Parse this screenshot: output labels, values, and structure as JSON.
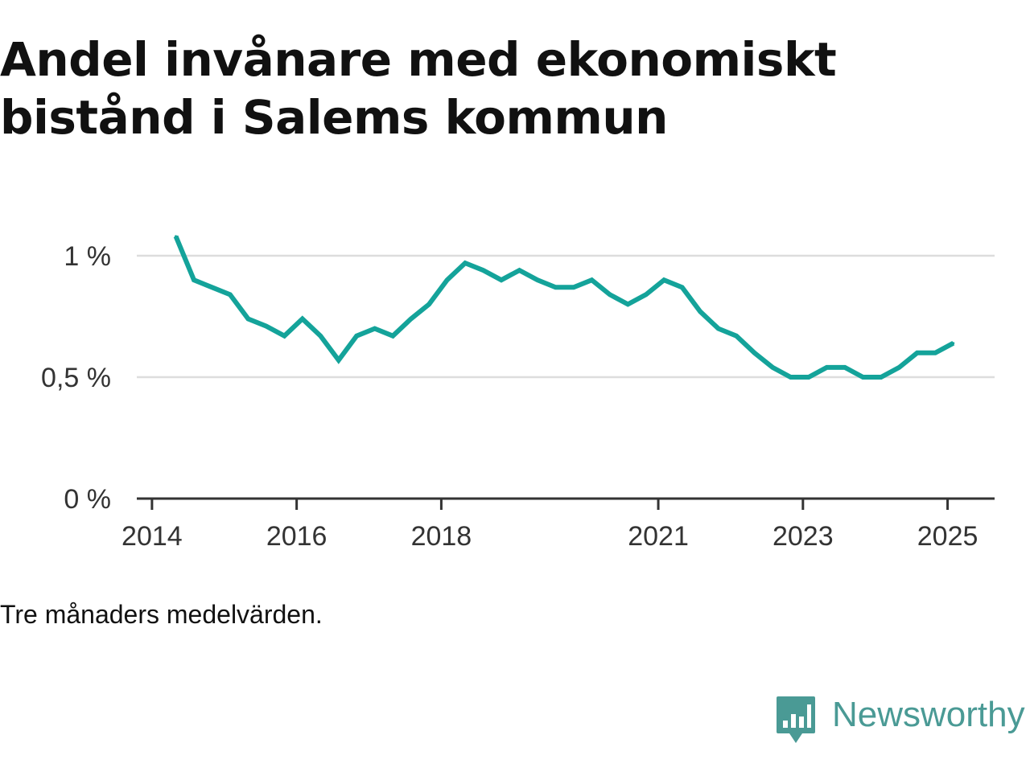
{
  "title": "Andel invånare med ekonomiskt bistånd i Salems kommun",
  "note": "Tre månaders medelvärden.",
  "brand": {
    "name": "Newsworthy",
    "logo_icon": "newsworthy-logo-icon",
    "color": "#4a9a95"
  },
  "colors": {
    "line": "#14a39a",
    "grid": "#dddddd",
    "axis": "#333333"
  },
  "chart_data": {
    "type": "line",
    "title": "Andel invånare med ekonomiskt bistånd i Salems kommun",
    "xlabel": "",
    "ylabel": "",
    "x_ticks": [
      {
        "label": "2014",
        "x": 2014.0
      },
      {
        "label": "2016",
        "x": 2016.0
      },
      {
        "label": "2018",
        "x": 2018.0
      },
      {
        "label": "2021",
        "x": 2021.0
      },
      {
        "label": "2023",
        "x": 2023.0
      },
      {
        "label": "2025",
        "x": 2025.0
      }
    ],
    "y_ticks": [
      {
        "label": "0 %",
        "value": 0
      },
      {
        "label": "0,5 %",
        "value": 0.5
      },
      {
        "label": "1 %",
        "value": 1
      }
    ],
    "xlim": [
      2013.79,
      2025.65
    ],
    "ylim": [
      0,
      1.0
    ],
    "grid": true,
    "series": [
      {
        "points": [
          [
            2014.33,
            1.08
          ],
          [
            2014.58,
            0.9
          ],
          [
            2014.83,
            0.87
          ],
          [
            2015.08,
            0.84
          ],
          [
            2015.33,
            0.74
          ],
          [
            2015.58,
            0.71
          ],
          [
            2015.83,
            0.67
          ],
          [
            2016.08,
            0.74
          ],
          [
            2016.33,
            0.67
          ],
          [
            2016.58,
            0.57
          ],
          [
            2016.83,
            0.67
          ],
          [
            2017.08,
            0.7
          ],
          [
            2017.33,
            0.67
          ],
          [
            2017.58,
            0.74
          ],
          [
            2017.83,
            0.8
          ],
          [
            2018.08,
            0.9
          ],
          [
            2018.33,
            0.97
          ],
          [
            2018.58,
            0.94
          ],
          [
            2018.83,
            0.9
          ],
          [
            2019.08,
            0.94
          ],
          [
            2019.33,
            0.9
          ],
          [
            2019.58,
            0.87
          ],
          [
            2019.83,
            0.87
          ],
          [
            2020.08,
            0.9
          ],
          [
            2020.33,
            0.84
          ],
          [
            2020.58,
            0.8
          ],
          [
            2020.83,
            0.84
          ],
          [
            2021.08,
            0.9
          ],
          [
            2021.33,
            0.87
          ],
          [
            2021.58,
            0.77
          ],
          [
            2021.83,
            0.7
          ],
          [
            2022.08,
            0.67
          ],
          [
            2022.33,
            0.6
          ],
          [
            2022.58,
            0.54
          ],
          [
            2022.83,
            0.5
          ],
          [
            2023.08,
            0.5
          ],
          [
            2023.33,
            0.54
          ],
          [
            2023.58,
            0.54
          ],
          [
            2023.83,
            0.5
          ],
          [
            2024.08,
            0.5
          ],
          [
            2024.33,
            0.54
          ],
          [
            2024.58,
            0.6
          ],
          [
            2024.83,
            0.6
          ],
          [
            2025.08,
            0.64
          ]
        ]
      }
    ]
  }
}
